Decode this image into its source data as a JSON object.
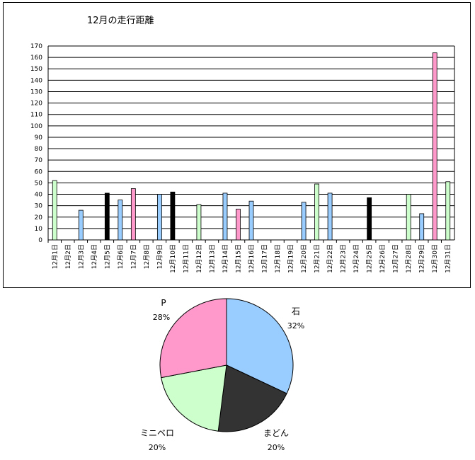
{
  "chart_data": [
    {
      "type": "bar",
      "title": "12月の走行距離",
      "ylim": [
        0,
        170
      ],
      "yticks": [
        0,
        10,
        20,
        30,
        40,
        50,
        60,
        70,
        80,
        90,
        100,
        110,
        120,
        130,
        140,
        150,
        160,
        170
      ],
      "grid": true,
      "categories": [
        "12月1日",
        "12月2日",
        "12月3日",
        "12月4日",
        "12月5日",
        "12月6日",
        "12月7日",
        "12月8日",
        "12月9日",
        "12月10日",
        "12月11日",
        "12月12日",
        "12月13日",
        "12月14日",
        "12月15日",
        "12月16日",
        "12月17日",
        "12月18日",
        "12月19日",
        "12月20日",
        "12月21日",
        "12月22日",
        "12月23日",
        "12月24日",
        "12月25日",
        "12月26日",
        "12月27日",
        "12月28日",
        "12月29日",
        "12月30日",
        "12月31日"
      ],
      "values": [
        52,
        0,
        26,
        0,
        41,
        35,
        45,
        0,
        40,
        42,
        0,
        31,
        0,
        41,
        27,
        34,
        0,
        0,
        0,
        33,
        49,
        41,
        0,
        0,
        37,
        0,
        0,
        40,
        23,
        164,
        51
      ],
      "bar_colors": [
        "#ccffcc",
        "#ccffcc",
        "#99ccff",
        "#99ccff",
        "#000000",
        "#99ccff",
        "#ff99cc",
        "#99ccff",
        "#99ccff",
        "#000000",
        "#99ccff",
        "#ccffcc",
        "#99ccff",
        "#99ccff",
        "#ff99cc",
        "#99ccff",
        "#99ccff",
        "#99ccff",
        "#99ccff",
        "#99ccff",
        "#ccffcc",
        "#99ccff",
        "#99ccff",
        "#99ccff",
        "#000000",
        "#99ccff",
        "#99ccff",
        "#ccffcc",
        "#99ccff",
        "#ff99cc",
        "#ccffcc"
      ]
    },
    {
      "type": "pie",
      "slices": [
        {
          "label": "石",
          "pct_label": "32%",
          "value": 32,
          "color": "#99ccff"
        },
        {
          "label": "まどん",
          "pct_label": "20%",
          "value": 20,
          "color": "#333333"
        },
        {
          "label": "ミニベロ",
          "pct_label": "20%",
          "value": 20,
          "color": "#ccffcc"
        },
        {
          "label": "P",
          "pct_label": "28%",
          "value": 28,
          "color": "#ff99cc"
        }
      ]
    }
  ]
}
